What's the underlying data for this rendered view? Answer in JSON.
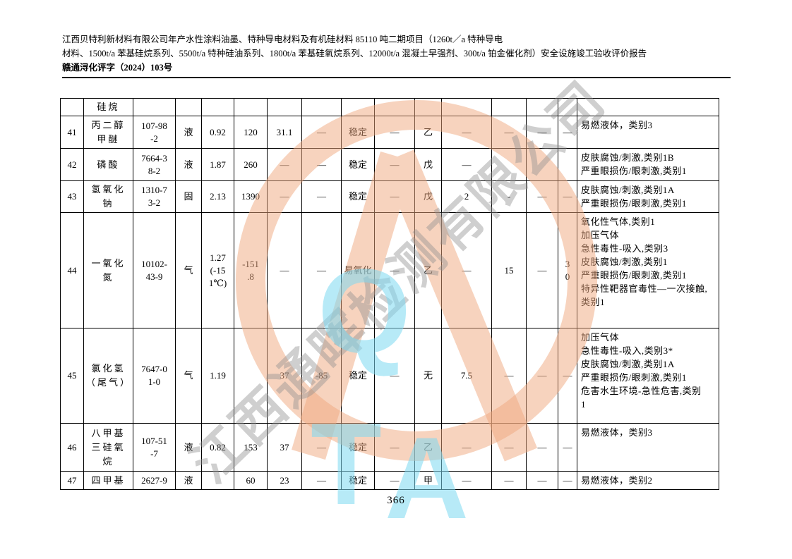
{
  "header": {
    "line1": "江西贝特利新材料有限公司年产水性涂料油墨、特种导电材料及有机硅材料 85110 吨二期项目（1260t／a 特种导电",
    "line2": "材料、1500t/a 苯基硅烷系列、5500t/a 特种硅油系列、1800t/a 苯基硅氧烷系列、12000t/a 混凝土早强剂、300t/a 铂金催化剂）安全设施竣工验收评价报告",
    "doc_number": "赣通浔化评字（2024）103号"
  },
  "table": {
    "rows": [
      {
        "cells": [
          "",
          "硅烷",
          "",
          "",
          "",
          "",
          "",
          "",
          "",
          "",
          "",
          "",
          "",
          "",
          "",
          ""
        ]
      },
      {
        "cells": [
          "41",
          "丙二醇\n甲醚",
          "107-98\n-2",
          "液",
          "0.92",
          "120",
          "31.1",
          "—",
          "稳定",
          "—",
          "乙",
          "—",
          "—",
          "—",
          "—",
          "易燃液体，类别3"
        ]
      },
      {
        "cells": [
          "42",
          "磷酸",
          "7664-3\n8-2",
          "液",
          "1.87",
          "260",
          "—",
          "—",
          "稳定",
          "—",
          "戊",
          "—",
          "",
          "",
          "",
          "皮肤腐蚀/刺激,类别1B\n严重眼损伤/眼刺激,类别1"
        ]
      },
      {
        "cells": [
          "43",
          "氢氧化\n钠",
          "1310-7\n3-2",
          "固",
          "2.13",
          "1390",
          "—",
          "—",
          "稳定",
          "—",
          "戊",
          "2",
          "-",
          "—",
          "—",
          "皮肤腐蚀/刺激,类别1A\n严重眼损伤/眼刺激,类别1"
        ]
      },
      {
        "cells": [
          "44",
          "一氧化\n氮",
          "10102-\n43-9",
          "气",
          "1.27\n(-15\n1℃)",
          "-151\n.8",
          "—",
          "—",
          "易氧化",
          "—",
          "乙",
          "—",
          "15",
          "—",
          "3\n0",
          "氧化性气体,类别1\n加压气体\n急性毒性-吸入,类别3\n皮肤腐蚀/刺激,类别1\n严重眼损伤/眼刺激,类别1\n特异性靶器官毒性—一次接触,\n类别1"
        ]
      },
      {
        "cells": [
          "45",
          "氯化氢\n（尾气）",
          "7647-0\n1-0",
          "气",
          "1.19",
          "",
          "37",
          "-85",
          "稳定",
          "—",
          "无",
          "7.5",
          "—",
          "—",
          "—",
          "加压气体\n急性毒性-吸入,类别3*\n皮肤腐蚀/刺激,类别1A\n严重眼损伤/眼刺激,类别1\n危害水生环境-急性危害,类别\n1"
        ]
      },
      {
        "cells": [
          "46",
          "八甲基\n三硅氧\n烷",
          "107-51\n-7",
          "液",
          "0.82",
          "153",
          "37",
          "—",
          "稳定",
          "—",
          "乙",
          "—",
          "—",
          "—",
          "—",
          "易燃液体，类别3"
        ]
      },
      {
        "cells": [
          "47",
          "四甲基",
          "2627-9",
          "液",
          "",
          "60",
          "23",
          "—",
          "稳定",
          "—",
          "甲",
          "—",
          "—",
          "—",
          "—",
          "易燃液体，类别2"
        ]
      }
    ]
  },
  "watermark": {
    "company_text": "江西通晖检测有限公司",
    "letter_q": "Q",
    "letter_t": "T",
    "letter_a": "A",
    "ring_color": "#F0A87E",
    "letter_color": "#7ED9F2",
    "text_color": "#8F8F8F"
  },
  "footer": {
    "page_number": "366"
  }
}
